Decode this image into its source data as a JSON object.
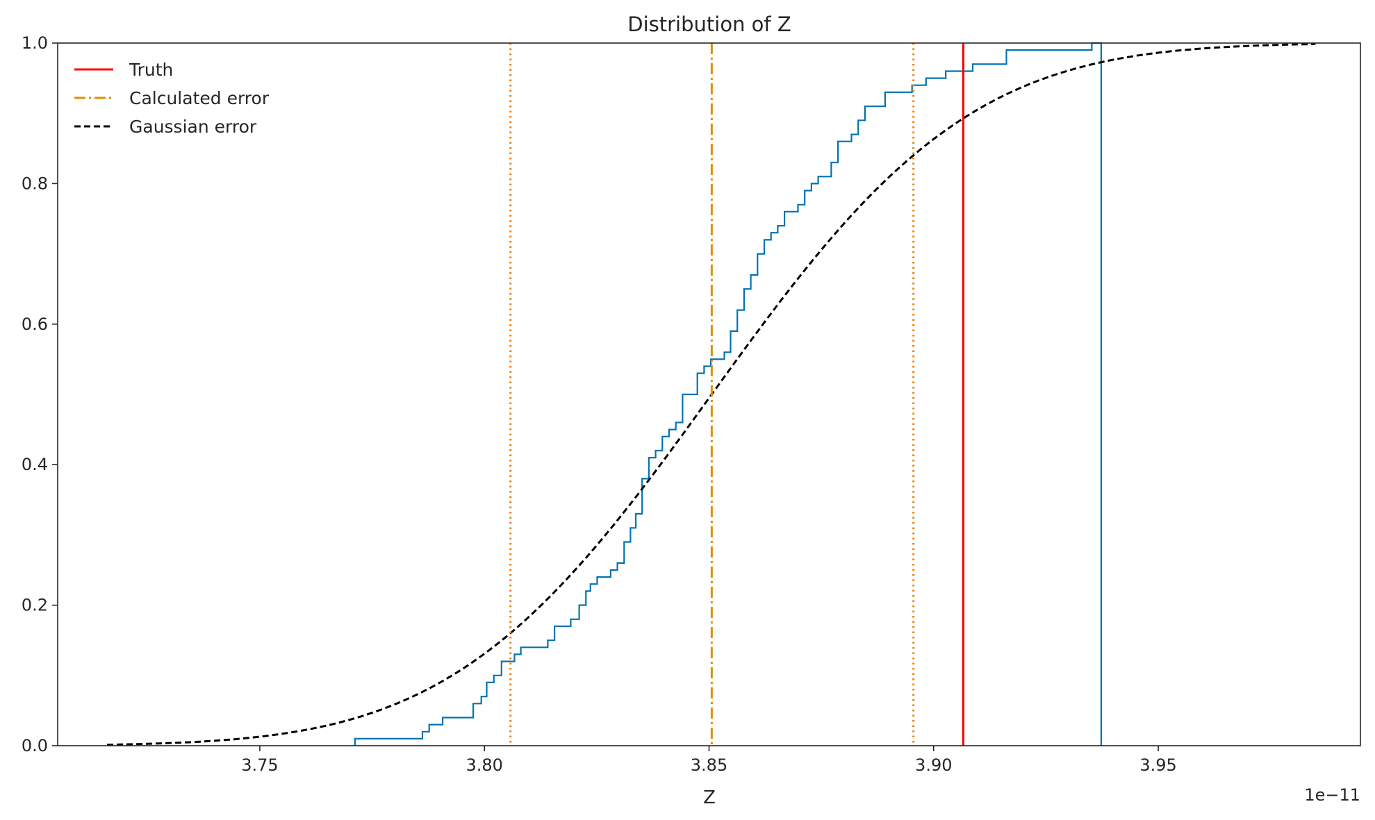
{
  "chart_data": {
    "type": "line",
    "title": "Distribution of Z",
    "xlabel": "Z",
    "ylabel": "",
    "x_offset_text": "1e−11",
    "xlim": [
      3.705,
      3.995
    ],
    "ylim": [
      0.0,
      1.0
    ],
    "x_ticks": [
      3.75,
      3.8,
      3.85,
      3.9,
      3.95
    ],
    "x_tick_labels": [
      "3.75",
      "3.80",
      "3.85",
      "3.90",
      "3.95"
    ],
    "y_ticks": [
      0.0,
      0.2,
      0.4,
      0.6,
      0.8,
      1.0
    ],
    "y_tick_labels": [
      "0.0",
      "0.2",
      "0.4",
      "0.6",
      "0.8",
      "1.0"
    ],
    "grid": false,
    "legend_position": "top-left",
    "legend": [
      {
        "label": "Truth",
        "color": "#ff0000",
        "style": "solid"
      },
      {
        "label": "Calculated error",
        "color": "#de8f05",
        "style": "dashdot"
      },
      {
        "label": "Gaussian error",
        "color": "#000000",
        "style": "dashed"
      }
    ],
    "empirical_cdf": {
      "color": "#0173b2",
      "points": [
        [
          3.7712,
          0.0
        ],
        [
          3.7712,
          0.01
        ],
        [
          3.7862,
          0.01
        ],
        [
          3.7862,
          0.02
        ],
        [
          3.7877,
          0.02
        ],
        [
          3.7877,
          0.03
        ],
        [
          3.7907,
          0.03
        ],
        [
          3.7907,
          0.04
        ],
        [
          3.7975,
          0.04
        ],
        [
          3.7975,
          0.06
        ],
        [
          3.7993,
          0.06
        ],
        [
          3.7993,
          0.07
        ],
        [
          3.8005,
          0.07
        ],
        [
          3.8005,
          0.09
        ],
        [
          3.8021,
          0.09
        ],
        [
          3.8021,
          0.1
        ],
        [
          3.8038,
          0.1
        ],
        [
          3.8038,
          0.12
        ],
        [
          3.8067,
          0.12
        ],
        [
          3.8067,
          0.13
        ],
        [
          3.8081,
          0.13
        ],
        [
          3.8081,
          0.14
        ],
        [
          3.8141,
          0.14
        ],
        [
          3.8141,
          0.15
        ],
        [
          3.8156,
          0.15
        ],
        [
          3.8156,
          0.17
        ],
        [
          3.8192,
          0.17
        ],
        [
          3.8192,
          0.18
        ],
        [
          3.8211,
          0.18
        ],
        [
          3.8211,
          0.2
        ],
        [
          3.8226,
          0.2
        ],
        [
          3.8226,
          0.22
        ],
        [
          3.8236,
          0.22
        ],
        [
          3.8236,
          0.23
        ],
        [
          3.8251,
          0.23
        ],
        [
          3.8251,
          0.24
        ],
        [
          3.8281,
          0.24
        ],
        [
          3.8281,
          0.25
        ],
        [
          3.8296,
          0.25
        ],
        [
          3.8296,
          0.26
        ],
        [
          3.8311,
          0.26
        ],
        [
          3.8311,
          0.29
        ],
        [
          3.8325,
          0.29
        ],
        [
          3.8325,
          0.31
        ],
        [
          3.8337,
          0.31
        ],
        [
          3.8337,
          0.33
        ],
        [
          3.8351,
          0.33
        ],
        [
          3.8351,
          0.38
        ],
        [
          3.8366,
          0.38
        ],
        [
          3.8366,
          0.41
        ],
        [
          3.8381,
          0.41
        ],
        [
          3.8381,
          0.42
        ],
        [
          3.8396,
          0.42
        ],
        [
          3.8396,
          0.44
        ],
        [
          3.8411,
          0.44
        ],
        [
          3.8411,
          0.45
        ],
        [
          3.8426,
          0.45
        ],
        [
          3.8426,
          0.46
        ],
        [
          3.8441,
          0.46
        ],
        [
          3.8441,
          0.5
        ],
        [
          3.8474,
          0.5
        ],
        [
          3.8474,
          0.53
        ],
        [
          3.8489,
          0.53
        ],
        [
          3.8489,
          0.54
        ],
        [
          3.8504,
          0.54
        ],
        [
          3.8504,
          0.55
        ],
        [
          3.8534,
          0.55
        ],
        [
          3.8534,
          0.56
        ],
        [
          3.8548,
          0.56
        ],
        [
          3.8548,
          0.59
        ],
        [
          3.8563,
          0.59
        ],
        [
          3.8563,
          0.62
        ],
        [
          3.8578,
          0.62
        ],
        [
          3.8578,
          0.65
        ],
        [
          3.8593,
          0.65
        ],
        [
          3.8593,
          0.67
        ],
        [
          3.8608,
          0.67
        ],
        [
          3.8608,
          0.7
        ],
        [
          3.8623,
          0.7
        ],
        [
          3.8623,
          0.72
        ],
        [
          3.8638,
          0.72
        ],
        [
          3.8638,
          0.73
        ],
        [
          3.8653,
          0.73
        ],
        [
          3.8653,
          0.74
        ],
        [
          3.8668,
          0.74
        ],
        [
          3.8668,
          0.76
        ],
        [
          3.8698,
          0.76
        ],
        [
          3.8698,
          0.77
        ],
        [
          3.8713,
          0.77
        ],
        [
          3.8713,
          0.79
        ],
        [
          3.8728,
          0.79
        ],
        [
          3.8728,
          0.8
        ],
        [
          3.8743,
          0.8
        ],
        [
          3.8743,
          0.81
        ],
        [
          3.8772,
          0.81
        ],
        [
          3.8772,
          0.83
        ],
        [
          3.8787,
          0.83
        ],
        [
          3.8787,
          0.86
        ],
        [
          3.8817,
          0.86
        ],
        [
          3.8817,
          0.87
        ],
        [
          3.8832,
          0.87
        ],
        [
          3.8832,
          0.89
        ],
        [
          3.8847,
          0.89
        ],
        [
          3.8847,
          0.91
        ],
        [
          3.8892,
          0.91
        ],
        [
          3.8892,
          0.93
        ],
        [
          3.8952,
          0.93
        ],
        [
          3.8952,
          0.94
        ],
        [
          3.8983,
          0.94
        ],
        [
          3.8983,
          0.95
        ],
        [
          3.9027,
          0.95
        ],
        [
          3.9027,
          0.96
        ],
        [
          3.9087,
          0.96
        ],
        [
          3.9087,
          0.97
        ],
        [
          3.9162,
          0.97
        ],
        [
          3.9162,
          0.99
        ],
        [
          3.9352,
          0.99
        ],
        [
          3.9352,
          1.0
        ],
        [
          3.9373,
          1.0
        ],
        [
          3.9373,
          0.0
        ]
      ]
    },
    "gaussian_cdf": {
      "color": "#000000",
      "mean": 3.8506,
      "std": 0.0451,
      "x_range": [
        3.716,
        3.985
      ]
    },
    "vertical_lines": [
      {
        "name": "truth",
        "x": 3.9066,
        "color": "#ff0000",
        "style": "solid"
      },
      {
        "name": "calculated-mean",
        "x": 3.8506,
        "color": "#de8f05",
        "style": "dashdot"
      },
      {
        "name": "calculated-lower",
        "x": 3.8058,
        "color": "#f57c00",
        "style": "dotted"
      },
      {
        "name": "calculated-upper",
        "x": 3.8955,
        "color": "#f57c00",
        "style": "dotted"
      }
    ]
  }
}
